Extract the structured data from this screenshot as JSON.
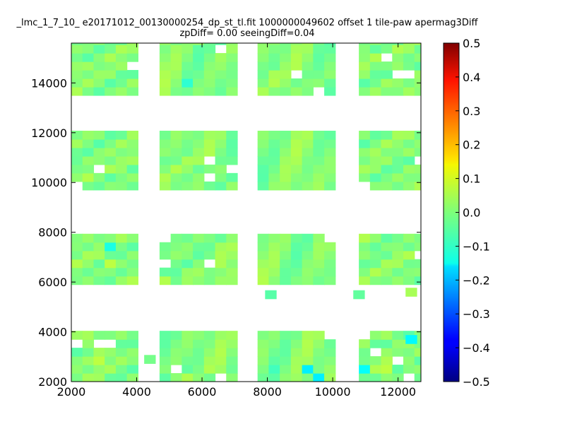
{
  "chart_data": {
    "type": "heatmap",
    "title_line1": "_lmc_1_7_10_ e20171012_00130000254_dp_st_tl.fit 1000000049602 offset 1 tile-paw apermag3Diff",
    "title_line2": "zpDiff= 0.00 seeingDiff=0.04",
    "xlabel": "",
    "ylabel": "",
    "xlim": [
      2000,
      12700
    ],
    "ylim": [
      2000,
      15600
    ],
    "x_ticks": [
      "2000",
      "4000",
      "6000",
      "8000",
      "10000",
      "12000"
    ],
    "y_ticks": [
      "2000",
      "4000",
      "6000",
      "8000",
      "10000",
      "12000",
      "14000"
    ],
    "colorbar": {
      "range": [
        -0.5,
        0.5
      ],
      "ticks": [
        "0.5",
        "0.4",
        "0.3",
        "0.2",
        "0.1",
        "0.0",
        "−0.1",
        "−0.2",
        "−0.3",
        "−0.4",
        "−0.5"
      ],
      "colormap": "jet"
    },
    "cell_size": 340,
    "columns": [
      {
        "x_start": 2000,
        "x_end": 4000
      },
      {
        "x_start": 4700,
        "x_end": 7000
      },
      {
        "x_start": 7700,
        "x_end": 10000
      },
      {
        "x_start": 10800,
        "x_end": 12700
      }
    ],
    "rows": [
      {
        "y_start": 13500,
        "y_end": 15600
      },
      {
        "y_start": 9700,
        "y_end": 11800
      },
      {
        "y_start": 5900,
        "y_end": 7900
      },
      {
        "y_start": 2000,
        "y_end": 4000
      }
    ],
    "holes": [
      {
        "x": 3700,
        "y": 15000
      },
      {
        "x": 3800,
        "y": 14800
      },
      {
        "x": 4700,
        "y": 15200
      },
      {
        "x": 5000,
        "y": 15200
      },
      {
        "x": 6700,
        "y": 15300
      },
      {
        "x": 9000,
        "y": 14500
      },
      {
        "x": 9600,
        "y": 13600
      },
      {
        "x": 11600,
        "y": 14900
      },
      {
        "x": 12000,
        "y": 14300
      },
      {
        "x": 12300,
        "y": 14300
      },
      {
        "x": 2200,
        "y": 10000
      },
      {
        "x": 2900,
        "y": 10400
      },
      {
        "x": 4500,
        "y": 11000
      },
      {
        "x": 6100,
        "y": 11000
      },
      {
        "x": 6100,
        "y": 10300
      },
      {
        "x": 7000,
        "y": 10600
      },
      {
        "x": 10800,
        "y": 10000
      },
      {
        "x": 11000,
        "y": 10000
      },
      {
        "x": 12600,
        "y": 11000
      },
      {
        "x": 4700,
        "y": 7800
      },
      {
        "x": 5000,
        "y": 7800
      },
      {
        "x": 6100,
        "y": 6800
      },
      {
        "x": 6700,
        "y": 7600
      },
      {
        "x": 9900,
        "y": 7800
      },
      {
        "x": 12300,
        "y": 7600
      },
      {
        "x": 12600,
        "y": 7200
      },
      {
        "x": 4800,
        "y": 6700
      },
      {
        "x": 2200,
        "y": 3400
      },
      {
        "x": 2800,
        "y": 3600
      },
      {
        "x": 3100,
        "y": 3400
      },
      {
        "x": 4100,
        "y": 3900
      },
      {
        "x": 4500,
        "y": 3600
      },
      {
        "x": 5300,
        "y": 2500
      },
      {
        "x": 6700,
        "y": 2300
      },
      {
        "x": 9400,
        "y": 3300
      },
      {
        "x": 9800,
        "y": 3800
      },
      {
        "x": 10200,
        "y": 3900
      },
      {
        "x": 10200,
        "y": 2300
      },
      {
        "x": 11000,
        "y": 3900
      },
      {
        "x": 11400,
        "y": 3300
      },
      {
        "x": 12000,
        "y": 3000
      },
      {
        "x": 12200,
        "y": 2300
      },
      {
        "x": 12500,
        "y": 2500
      },
      {
        "x": 3800,
        "y": 2000
      }
    ],
    "extra_cells": [
      {
        "x": 8100,
        "y": 5500,
        "v": -0.04
      },
      {
        "x": 10800,
        "y": 5500,
        "v": -0.03
      },
      {
        "x": 12400,
        "y": 5600,
        "v": 0.04
      },
      {
        "x": 4400,
        "y": 2900,
        "v": -0.01
      },
      {
        "x": 12400,
        "y": 3700,
        "v": -0.13
      }
    ],
    "value_overrides": [
      {
        "x": 3100,
        "y": 6600,
        "v": 0.06
      },
      {
        "x": 3200,
        "y": 7400,
        "v": -0.1
      },
      {
        "x": 4800,
        "y": 6200,
        "v": 0.05
      },
      {
        "x": 5700,
        "y": 14100,
        "v": -0.08
      },
      {
        "x": 9100,
        "y": 2500,
        "v": -0.14
      },
      {
        "x": 9400,
        "y": 2300,
        "v": -0.18
      },
      {
        "x": 9700,
        "y": 2300,
        "v": -0.14
      },
      {
        "x": 9200,
        "y": 2000,
        "v": -0.17
      },
      {
        "x": 9500,
        "y": 2000,
        "v": -0.2
      },
      {
        "x": 11600,
        "y": 3700,
        "v": -0.16
      },
      {
        "x": 11300,
        "y": 3700,
        "v": -0.1
      },
      {
        "x": 11100,
        "y": 2500,
        "v": -0.12
      },
      {
        "x": 10900,
        "y": 2500,
        "v": -0.08
      },
      {
        "x": 11600,
        "y": 2500,
        "v": 0.06
      },
      {
        "x": 8200,
        "y": 2500,
        "v": -0.06
      },
      {
        "x": 2700,
        "y": 2800,
        "v": 0.06
      },
      {
        "x": 11900,
        "y": 5800,
        "v": 0.05
      },
      {
        "x": 12200,
        "y": 5800,
        "v": 0.04
      }
    ]
  }
}
